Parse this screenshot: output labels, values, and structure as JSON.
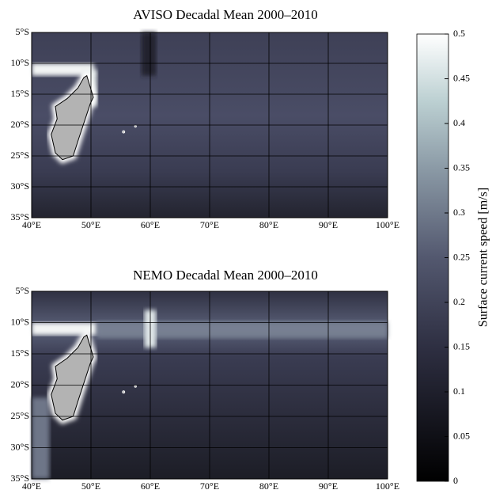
{
  "panels": [
    {
      "title": "AVISO Decadal Mean 2000–2010",
      "lat_ticks": [
        {
          "value": -5,
          "label": "5°S"
        },
        {
          "value": -10,
          "label": "10°S"
        },
        {
          "value": -15,
          "label": "15°S"
        },
        {
          "value": -20,
          "label": "20°S"
        },
        {
          "value": -25,
          "label": "25°S"
        },
        {
          "value": -30,
          "label": "30°S"
        },
        {
          "value": -35,
          "label": "35°S"
        }
      ],
      "lon_ticks": [
        {
          "value": 40,
          "label": "40°E"
        },
        {
          "value": 50,
          "label": "50°E"
        },
        {
          "value": 60,
          "label": "60°E"
        },
        {
          "value": 70,
          "label": "70°E"
        },
        {
          "value": 80,
          "label": "80°E"
        },
        {
          "value": 90,
          "label": "90°E"
        },
        {
          "value": 100,
          "label": "100°E"
        }
      ]
    },
    {
      "title": "NEMO Decadal Mean 2000–2010",
      "lat_ticks": [
        {
          "value": -5,
          "label": "5°S"
        },
        {
          "value": -10,
          "label": "10°S"
        },
        {
          "value": -15,
          "label": "15°S"
        },
        {
          "value": -20,
          "label": "20°S"
        },
        {
          "value": -25,
          "label": "25°S"
        },
        {
          "value": -30,
          "label": "30°S"
        },
        {
          "value": -35,
          "label": "35°S"
        }
      ],
      "lon_ticks": [
        {
          "value": 40,
          "label": "40°E"
        },
        {
          "value": 50,
          "label": "50°E"
        },
        {
          "value": 60,
          "label": "60°E"
        },
        {
          "value": 70,
          "label": "70°E"
        },
        {
          "value": 80,
          "label": "80°E"
        },
        {
          "value": 90,
          "label": "90°E"
        },
        {
          "value": 100,
          "label": "100°E"
        }
      ]
    }
  ],
  "colorbar": {
    "label": "Surface current speed [m/s]",
    "lim": [
      0,
      0.5
    ],
    "ticks": [
      0,
      0.05,
      0.1,
      0.15,
      0.2,
      0.25,
      0.3,
      0.35,
      0.4,
      0.45,
      0.5
    ]
  }
}
